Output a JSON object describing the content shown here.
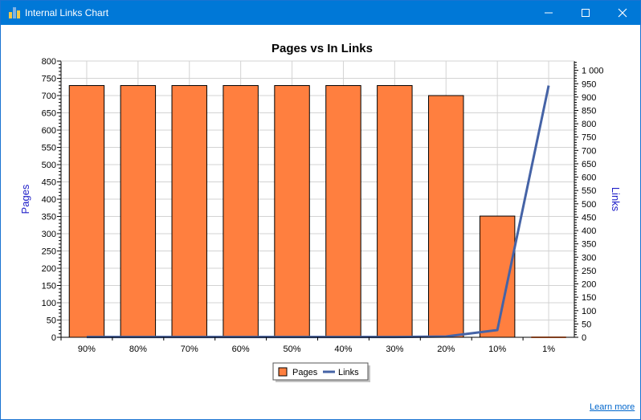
{
  "window": {
    "title": "Internal Links Chart"
  },
  "footer": {
    "learn_more": "Learn more"
  },
  "colors": {
    "titlebar": "#0078d7",
    "bar_fill": "#ff7f3f",
    "line": "#4563a6",
    "axis_title": "#1e1ec8"
  },
  "icons": {
    "app": "bar-chart-icon",
    "minimize": "minimize-icon",
    "maximize": "maximize-icon",
    "close": "close-icon"
  },
  "chart_data": {
    "type": "bar",
    "title": "Pages vs In Links",
    "categories": [
      "90%",
      "80%",
      "70%",
      "60%",
      "50%",
      "40%",
      "30%",
      "20%",
      "10%",
      "1%"
    ],
    "series": [
      {
        "name": "Pages",
        "type": "bar",
        "axis": "left",
        "values": [
          729,
          729,
          729,
          729,
          729,
          729,
          729,
          700,
          351,
          0
        ]
      },
      {
        "name": "Links",
        "type": "line",
        "axis": "right",
        "values": [
          1,
          1,
          1,
          1,
          1,
          1,
          1,
          3,
          27,
          943
        ]
      }
    ],
    "ylabel": "Pages",
    "y2label": "Links",
    "ylim": [
      0,
      800
    ],
    "y2lim": [
      0,
      1035
    ],
    "yticks": [
      "0",
      "50",
      "100",
      "150",
      "200",
      "250",
      "300",
      "350",
      "400",
      "450",
      "500",
      "550",
      "600",
      "650",
      "700",
      "750",
      "800"
    ],
    "y2ticks": [
      "0",
      "50",
      "100",
      "150",
      "200",
      "250",
      "300",
      "350",
      "400",
      "450",
      "500",
      "550",
      "600",
      "650",
      "700",
      "750",
      "800",
      "850",
      "900",
      "950",
      "1 000"
    ],
    "grid": true,
    "legend": "bottom-center"
  }
}
